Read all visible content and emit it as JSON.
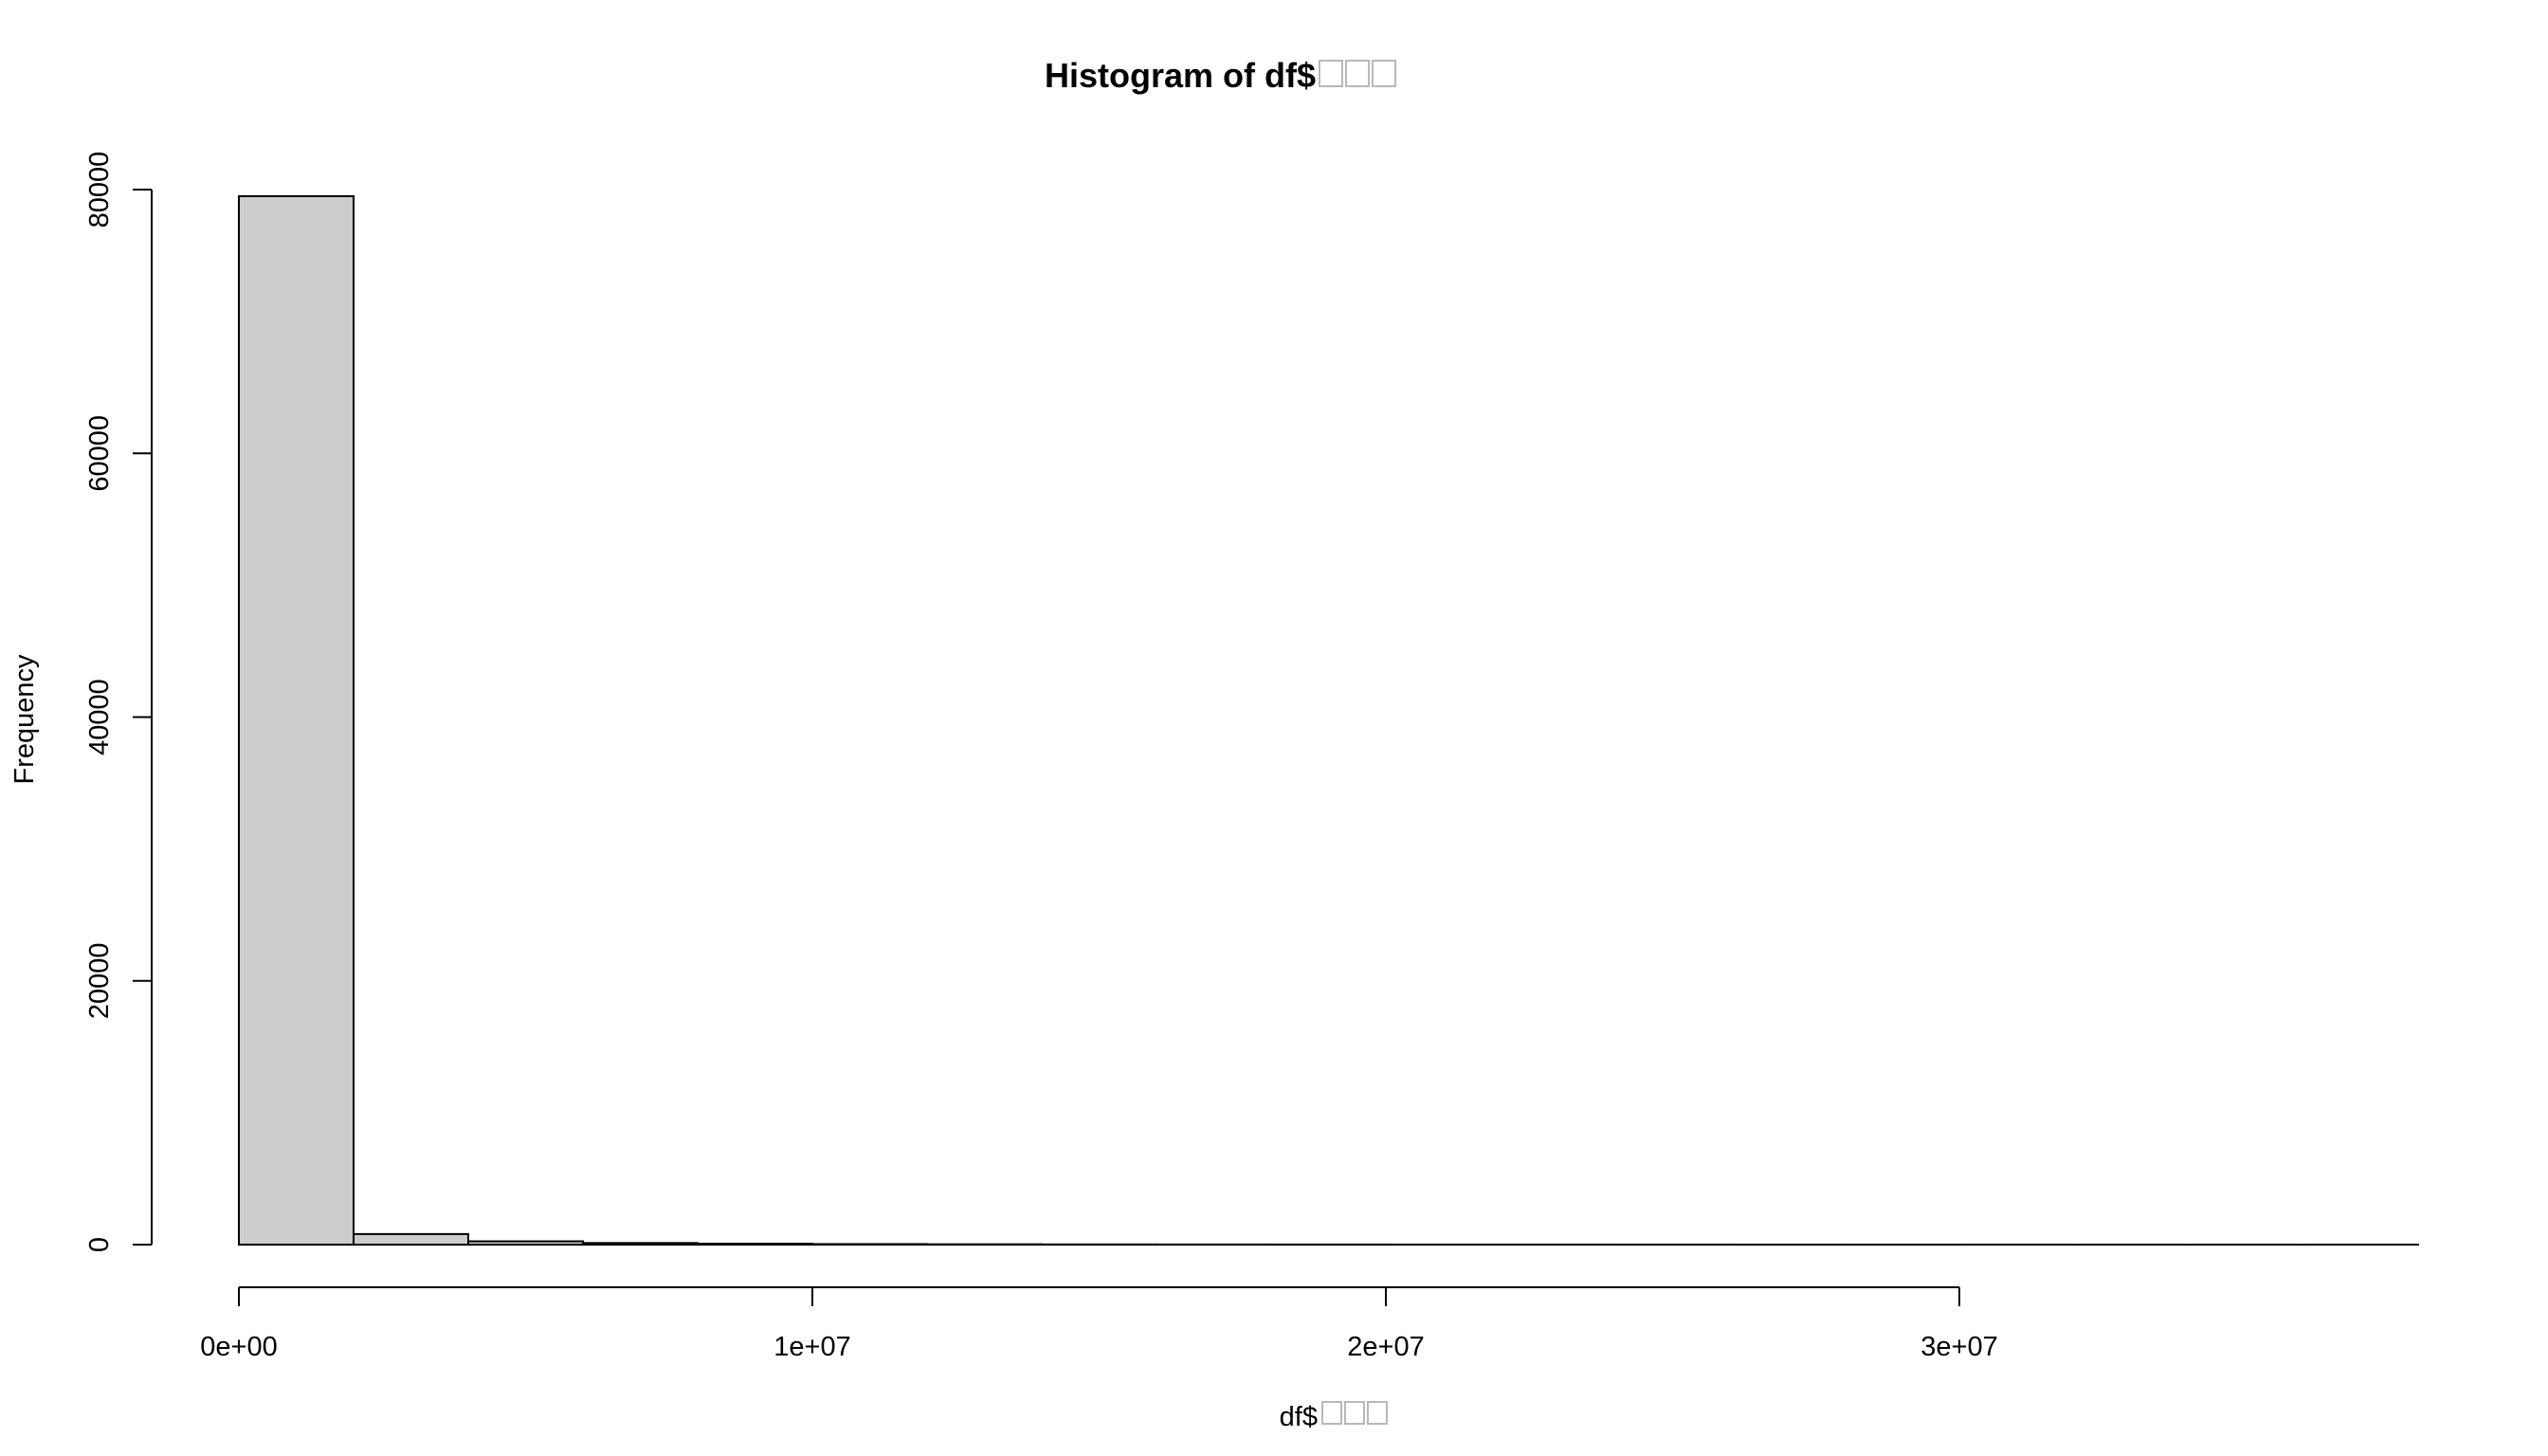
{
  "chart_data": {
    "type": "bar",
    "title": "Histogram of df$",
    "xlabel": "df$",
    "ylabel": "Frequency",
    "missing_glyph_count": 3,
    "bin_width": 2000000,
    "bins": [
      {
        "x0": 0,
        "x1": 2000000,
        "count": 79500
      },
      {
        "x0": 2000000,
        "x1": 4000000,
        "count": 800
      },
      {
        "x0": 4000000,
        "x1": 6000000,
        "count": 250
      },
      {
        "x0": 6000000,
        "x1": 8000000,
        "count": 120
      },
      {
        "x0": 8000000,
        "x1": 10000000,
        "count": 70
      },
      {
        "x0": 10000000,
        "x1": 12000000,
        "count": 40
      },
      {
        "x0": 12000000,
        "x1": 14000000,
        "count": 25
      },
      {
        "x0": 14000000,
        "x1": 16000000,
        "count": 15
      },
      {
        "x0": 16000000,
        "x1": 18000000,
        "count": 10
      },
      {
        "x0": 18000000,
        "x1": 20000000,
        "count": 8
      },
      {
        "x0": 20000000,
        "x1": 22000000,
        "count": 5
      },
      {
        "x0": 22000000,
        "x1": 24000000,
        "count": 4
      },
      {
        "x0": 24000000,
        "x1": 26000000,
        "count": 3
      },
      {
        "x0": 26000000,
        "x1": 28000000,
        "count": 2
      },
      {
        "x0": 28000000,
        "x1": 30000000,
        "count": 2
      },
      {
        "x0": 30000000,
        "x1": 32000000,
        "count": 1
      },
      {
        "x0": 32000000,
        "x1": 34000000,
        "count": 1
      },
      {
        "x0": 34000000,
        "x1": 36000000,
        "count": 1
      },
      {
        "x0": 36000000,
        "x1": 38000000,
        "count": 1
      }
    ],
    "x_ticks": [
      {
        "value": 0,
        "label": "0e+00"
      },
      {
        "value": 10000000,
        "label": "1e+07"
      },
      {
        "value": 20000000,
        "label": "2e+07"
      },
      {
        "value": 30000000,
        "label": "3e+07"
      }
    ],
    "y_ticks": [
      {
        "value": 0,
        "label": "0"
      },
      {
        "value": 20000,
        "label": "20000"
      },
      {
        "value": 40000,
        "label": "40000"
      },
      {
        "value": 60000,
        "label": "60000"
      },
      {
        "value": 80000,
        "label": "80000"
      }
    ],
    "xlim": [
      0,
      38000000
    ],
    "ylim": [
      0,
      80000
    ],
    "grid": false,
    "legend": "none",
    "bar_fill": "#cccccc",
    "bar_stroke": "#000000",
    "missing_glyph_color": "#b8b8b8"
  }
}
